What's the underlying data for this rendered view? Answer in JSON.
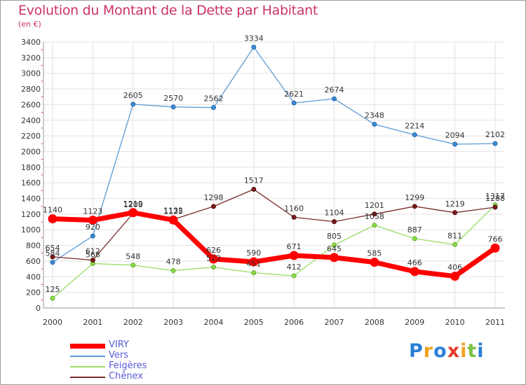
{
  "header": {
    "title": "Evolution du Montant de la Dette par Habitant",
    "unit": "(en €)"
  },
  "chart_data": {
    "type": "line",
    "title": "Evolution du Montant de la Dette par Habitant",
    "ylabel": "(en €)",
    "xlabel": "",
    "ylim": [
      0,
      3400
    ],
    "yticks": [
      0,
      200,
      400,
      600,
      800,
      1000,
      1200,
      1400,
      1600,
      1800,
      2000,
      2200,
      2400,
      2600,
      2800,
      3000,
      3200,
      3400
    ],
    "categories": [
      "2000",
      "2001",
      "2002",
      "2003",
      "2004",
      "2005",
      "2006",
      "2007",
      "2008",
      "2009",
      "2010",
      "2011"
    ],
    "grid": true,
    "legend_position": "bottom-left",
    "series": [
      {
        "name": "VIRY",
        "color": "#ff0000",
        "values": [
          1140,
          1123,
          1219,
          1125,
          626,
          590,
          671,
          645,
          585,
          466,
          406,
          766
        ]
      },
      {
        "name": "Vers",
        "color": "#5b9bd5",
        "values": [
          584,
          920,
          2605,
          2570,
          2562,
          3334,
          2621,
          2674,
          2348,
          2214,
          2094,
          2102
        ]
      },
      {
        "name": "Feigères",
        "color": "#99dd66",
        "values": [
          125,
          568,
          548,
          478,
          522,
          451,
          412,
          805,
          1058,
          887,
          811,
          1317
        ]
      },
      {
        "name": "Chênex",
        "color": "#7a2a2a",
        "values": [
          654,
          612,
          1208,
          1132,
          1298,
          1517,
          1160,
          1104,
          1201,
          1299,
          1219,
          1288
        ]
      }
    ]
  },
  "logo": {
    "text": "Proxiti",
    "letters": [
      {
        "char": "P",
        "color": "#2a7fd4"
      },
      {
        "char": "r",
        "color": "#f0a020"
      },
      {
        "char": "o",
        "color": "#2a7fd4"
      },
      {
        "char": "x",
        "color": "#e53a2a"
      },
      {
        "char": "i",
        "color": "#f0a020"
      },
      {
        "char": "t",
        "color": "#7ac143"
      },
      {
        "char": "i",
        "color": "#2a7fd4"
      }
    ]
  }
}
